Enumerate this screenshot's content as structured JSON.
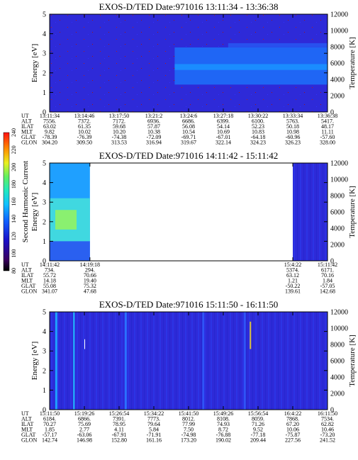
{
  "chart_data": [
    {
      "type": "heatmap",
      "title": "EXOS-D/TED   Date:971016   13:11:34 - 13:36:38",
      "ylabel": "Energy [eV]",
      "y2label": "Temperature [K]",
      "ylim": [
        0,
        5
      ],
      "y2lim": [
        0,
        12000
      ],
      "yticks": [
        "0",
        "1",
        "2",
        "3",
        "4",
        "5"
      ],
      "y2ticks": [
        "0",
        "2000",
        "4000",
        "6000",
        "8000",
        "10000",
        "12000"
      ],
      "ephemeris": {
        "labels": [
          "UT",
          "ALT",
          "ILAT",
          "MLT",
          "GLAT",
          "GLON"
        ],
        "columns": [
          [
            "13:11:34",
            "7556.",
            "63.02",
            "9.82",
            "-78.39",
            "304.20"
          ],
          [
            "13:14:46",
            "7372.",
            "61.35",
            "10.02",
            "-76.39",
            "309.50"
          ],
          [
            "13:17:50",
            "7172.",
            "59.68",
            "10.20",
            "-74.38",
            "313.53"
          ],
          [
            "13:21:2",
            "6936.",
            "57.87",
            "10.38",
            "-72.09",
            "316.94"
          ],
          [
            "13:24:6",
            "6686.",
            "56.08",
            "10.54",
            "-69.71",
            "319.67"
          ],
          [
            "13:27:18",
            "6399.",
            "54.14",
            "10.69",
            "-67.01",
            "322.14"
          ],
          [
            "13:30:22",
            "6100.",
            "52.23",
            "10.83",
            "-64.18",
            "324.23"
          ],
          [
            "13:33:34",
            "5763.",
            "50.18",
            "10.98",
            "-60.96",
            "326.23"
          ],
          [
            "13:36:38",
            "5417.",
            "48.17",
            "11.11",
            "-57.60",
            "328.00"
          ]
        ]
      },
      "band": {
        "start_fraction": 0.45,
        "low_eV": 1.4,
        "high_eV": 3.3
      }
    },
    {
      "type": "heatmap",
      "title": "EXOS-D/TED   Date:971016   14:11:42 - 15:11:42",
      "ylabel": "Energy [eV]",
      "y2label": "Temperature [K]",
      "ylim": [
        0,
        5
      ],
      "y2lim": [
        0,
        12000
      ],
      "yticks": [
        "0",
        "1",
        "2",
        "3",
        "4",
        "5"
      ],
      "y2ticks": [
        "0",
        "2000",
        "4000",
        "6000",
        "8000",
        "10000",
        "12000"
      ],
      "colorbar": {
        "label": "Second Harmonic Current",
        "ticks": [
          "80",
          "100",
          "120",
          "140",
          "160",
          "180",
          "200",
          "220",
          "240"
        ],
        "range": [
          80,
          240
        ]
      },
      "ephemeris": {
        "labels": [
          "UT",
          "ALT",
          "ILAT",
          "MLT",
          "GLAT",
          "GLON"
        ],
        "columns": [
          [
            "14:11:42",
            "734.",
            "55.72",
            "14.18",
            "55.08",
            "341.07"
          ],
          [
            "14:19:18",
            "294.",
            "70.66",
            "19.40",
            "75.32",
            "47.68"
          ],
          [
            "15:4:22",
            "5374.",
            "63.12",
            "1.21",
            "-50.22",
            "139.61"
          ],
          [
            "15:11:42",
            "6171.",
            "70.16",
            "1.84",
            "-57.05",
            "142.68"
          ]
        ]
      },
      "data_coverage": [
        "14:11:42 - 14:19:18",
        "15:4:22 - 15:11:42"
      ]
    },
    {
      "type": "heatmap",
      "title": "EXOS-D/TED   Date:971016   15:11:50 - 16:11:50",
      "ylabel": "Energy [eV]",
      "y2label": "Temperature [K]",
      "ylim": [
        0,
        5
      ],
      "y2lim": [
        0,
        12000
      ],
      "yticks": [
        "0",
        "1",
        "2",
        "3",
        "4",
        "5"
      ],
      "y2ticks": [
        "0",
        "2000",
        "4000",
        "6000",
        "8000",
        "10000",
        "12000"
      ],
      "ephemeris": {
        "labels": [
          "UT",
          "ALT",
          "ILAT",
          "MLT",
          "GLAT",
          "GLON"
        ],
        "columns": [
          [
            "15:11:50",
            "6184.",
            "70.27",
            "1.85",
            "-57.17",
            "142.74"
          ],
          [
            "15:19:26",
            "6866.",
            "75.69",
            "2.77",
            "-63.06",
            "146.98"
          ],
          [
            "15:26:54",
            "7391.",
            "78.95",
            "4.11",
            "-67.91",
            "152.80"
          ],
          [
            "15:34:22",
            "7773.",
            "79.64",
            "5.84",
            "-71.91",
            "161.16"
          ],
          [
            "15:41:50",
            "8012.",
            "77.99",
            "7.50",
            "-74.98",
            "173.20"
          ],
          [
            "15:49:26",
            "8108.",
            "74.93",
            "8.72",
            "-76.88",
            "190.02"
          ],
          [
            "15:56:54",
            "8059.",
            "71.26",
            "9.52",
            "-77.18",
            "209.44"
          ],
          [
            "16:4:22",
            "7868.",
            "67.20",
            "10.06",
            "-75.87",
            "227.56"
          ],
          [
            "16:11:50",
            "7534.",
            "62.82",
            "10.46",
            "-73.20",
            "241.52"
          ]
        ]
      }
    }
  ]
}
